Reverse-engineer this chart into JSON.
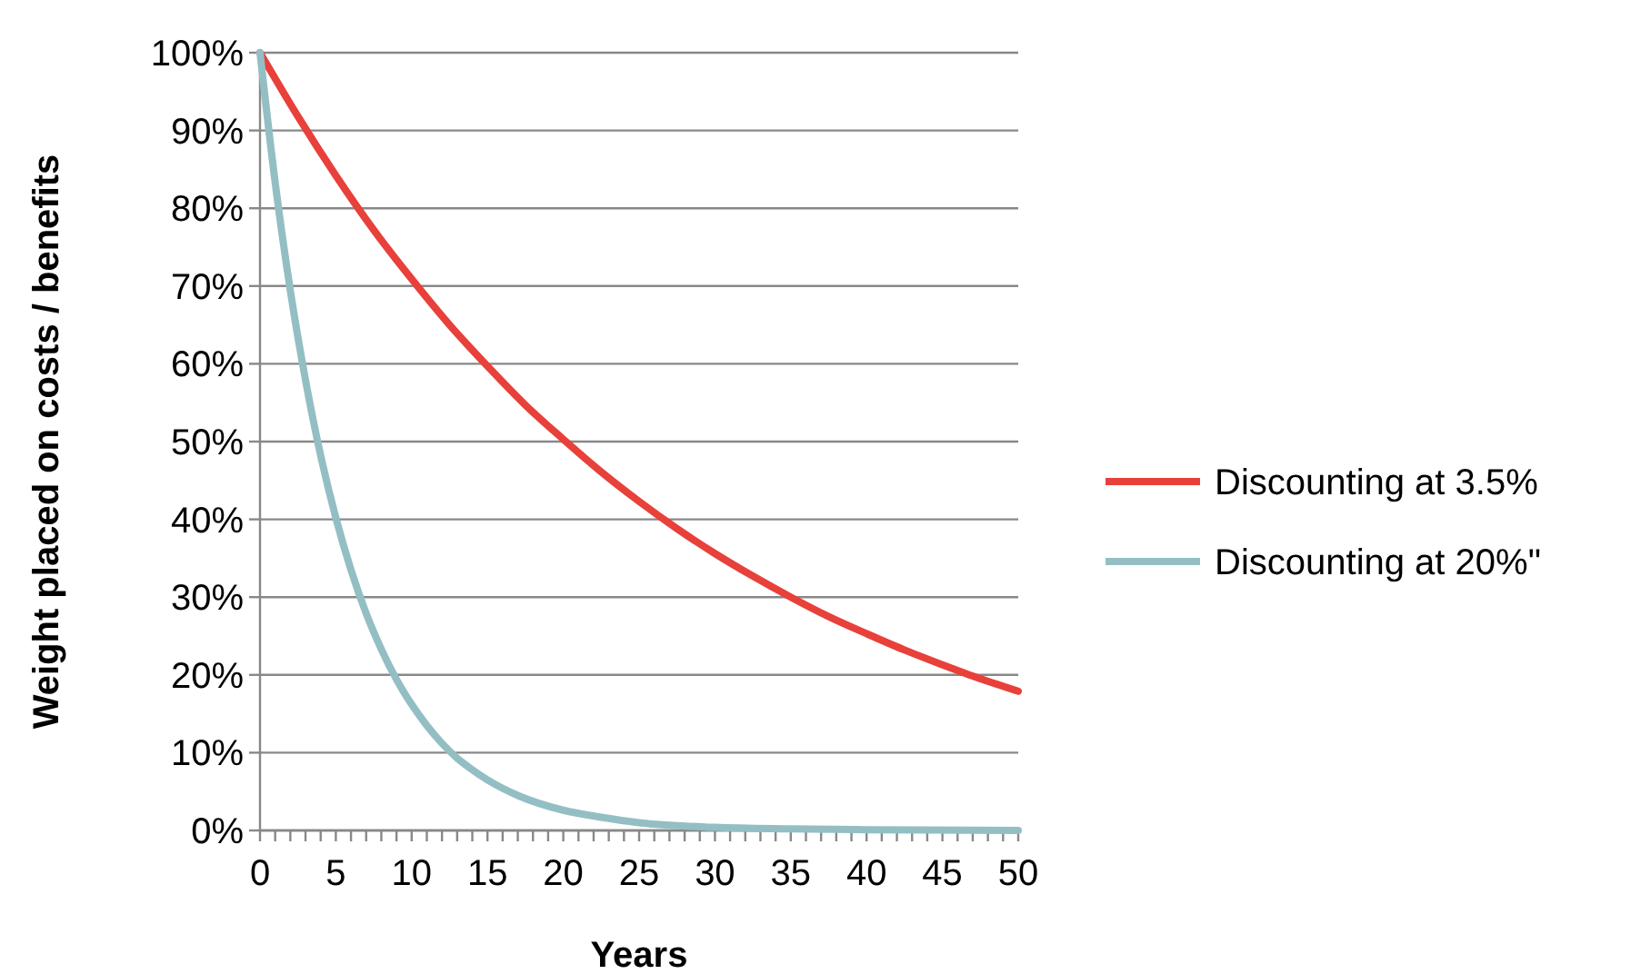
{
  "chart_data": {
    "type": "line",
    "xlabel": "Years",
    "ylabel": "Weight placed on costs / benefits",
    "xlim": [
      0,
      50
    ],
    "ylim": [
      0,
      100
    ],
    "xticks": [
      0,
      {
        "value": 1,
        "label": null
      },
      {
        "value": 2,
        "label": null
      },
      {
        "value": 3,
        "label": null
      },
      {
        "value": 4,
        "label": null
      },
      5,
      {
        "value": 6,
        "label": null
      },
      {
        "value": 7,
        "label": null
      },
      {
        "value": 8,
        "label": null
      },
      {
        "value": 9,
        "label": null
      },
      10,
      {
        "value": 11,
        "label": null
      },
      {
        "value": 12,
        "label": null
      },
      {
        "value": 13,
        "label": null
      },
      {
        "value": 14,
        "label": null
      },
      15,
      {
        "value": 16,
        "label": null
      },
      {
        "value": 17,
        "label": null
      },
      {
        "value": 18,
        "label": null
      },
      {
        "value": 19,
        "label": null
      },
      20,
      {
        "value": 21,
        "label": null
      },
      {
        "value": 22,
        "label": null
      },
      {
        "value": 23,
        "label": null
      },
      {
        "value": 24,
        "label": null
      },
      25,
      {
        "value": 26,
        "label": null
      },
      {
        "value": 27,
        "label": null
      },
      {
        "value": 28,
        "label": null
      },
      {
        "value": 29,
        "label": null
      },
      30,
      {
        "value": 31,
        "label": null
      },
      {
        "value": 32,
        "label": null
      },
      {
        "value": 33,
        "label": null
      },
      {
        "value": 34,
        "label": null
      },
      35,
      {
        "value": 36,
        "label": null
      },
      {
        "value": 37,
        "label": null
      },
      {
        "value": 38,
        "label": null
      },
      {
        "value": 39,
        "label": null
      },
      40,
      {
        "value": 41,
        "label": null
      },
      {
        "value": 42,
        "label": null
      },
      {
        "value": 43,
        "label": null
      },
      {
        "value": 44,
        "label": null
      },
      45,
      {
        "value": 46,
        "label": null
      },
      {
        "value": 47,
        "label": null
      },
      {
        "value": 48,
        "label": null
      },
      {
        "value": 49,
        "label": null
      },
      50
    ],
    "yticks": [
      {
        "value": 0,
        "label": "0%"
      },
      {
        "value": 10,
        "label": "10%"
      },
      {
        "value": 20,
        "label": "20%"
      },
      {
        "value": 30,
        "label": "30%"
      },
      {
        "value": 40,
        "label": "40%"
      },
      {
        "value": 50,
        "label": "50%"
      },
      {
        "value": 60,
        "label": "60%"
      },
      {
        "value": 70,
        "label": "70%"
      },
      {
        "value": 80,
        "label": "80%"
      },
      {
        "value": 90,
        "label": "90%"
      },
      {
        "value": 100,
        "label": "100%"
      }
    ],
    "grid": "y",
    "legend": "right",
    "marker": "none",
    "line_style": "solid",
    "series": [
      {
        "name": "Discounting at 3.5%",
        "color": "#e8403a",
        "x": [
          0,
          2.5,
          5,
          7.5,
          10,
          12.5,
          15,
          17.5,
          20,
          22.5,
          25,
          27.5,
          30,
          32.5,
          35,
          37.5,
          40,
          42.5,
          45,
          47.5,
          50
        ],
        "values": [
          100,
          91.8,
          84.2,
          77.2,
          70.9,
          65.0,
          59.7,
          54.7,
          50.3,
          46.1,
          42.3,
          38.8,
          35.6,
          32.7,
          30.0,
          27.5,
          25.3,
          23.2,
          21.3,
          19.5,
          17.9
        ]
      },
      {
        "name": "Discounting at 20%\"",
        "color": "#93bfc4",
        "x": [
          0,
          1,
          2,
          3,
          4,
          5,
          6,
          7,
          8,
          9,
          10,
          11,
          12,
          13,
          14,
          15,
          17,
          20,
          22.5,
          25,
          30,
          35,
          40,
          50
        ],
        "values": [
          100,
          83.3,
          69.4,
          57.9,
          48.2,
          40.2,
          33.5,
          27.9,
          23.3,
          19.4,
          16.2,
          13.5,
          11.2,
          9.3,
          7.8,
          6.5,
          4.5,
          2.6,
          1.7,
          1.0,
          0.4,
          0.2,
          0.1,
          0
        ]
      }
    ]
  }
}
